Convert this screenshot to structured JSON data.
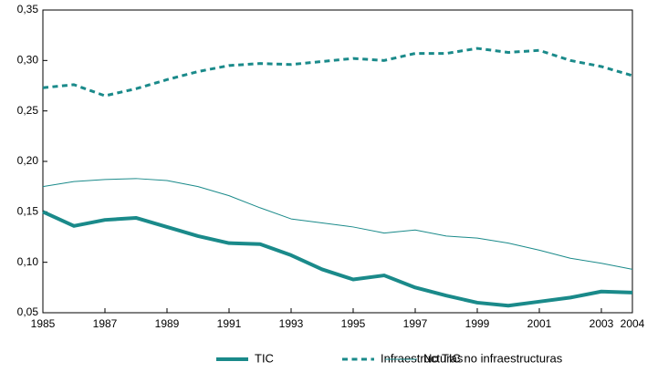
{
  "chart_data": {
    "type": "line",
    "x": [
      1985,
      1986,
      1987,
      1988,
      1989,
      1990,
      1991,
      1992,
      1993,
      1994,
      1995,
      1996,
      1997,
      1998,
      1999,
      2000,
      2001,
      2002,
      2003,
      2004
    ],
    "series": [
      {
        "name": "TIC",
        "color": "#1a8a8a",
        "linewidth": 4,
        "linestyle": "solid",
        "values": [
          0.15,
          0.136,
          0.142,
          0.144,
          0.135,
          0.126,
          0.119,
          0.118,
          0.107,
          0.093,
          0.083,
          0.087,
          0.075,
          0.067,
          0.06,
          0.057,
          0.061,
          0.065,
          0.071,
          0.07
        ]
      },
      {
        "name": "Infraestructuras",
        "color": "#1a8a8a",
        "linewidth": 3,
        "linestyle": "dashed",
        "values": [
          0.273,
          0.276,
          0.265,
          0.272,
          0.281,
          0.289,
          0.295,
          0.297,
          0.296,
          0.299,
          0.302,
          0.3,
          0.307,
          0.307,
          0.312,
          0.308,
          0.31,
          0.3,
          0.294,
          0.285
        ]
      },
      {
        "name": "No TIC no infraestructuras",
        "color": "#1a8a8a",
        "linewidth": 1,
        "linestyle": "solid",
        "values": [
          0.175,
          0.18,
          0.182,
          0.183,
          0.181,
          0.175,
          0.166,
          0.154,
          0.143,
          0.139,
          0.135,
          0.129,
          0.132,
          0.126,
          0.124,
          0.119,
          0.112,
          0.104,
          0.099,
          0.093
        ]
      }
    ],
    "xlim": [
      1985,
      2004
    ],
    "xticks": [
      1985,
      1987,
      1989,
      1991,
      1993,
      1995,
      1997,
      1999,
      2001,
      2003,
      2004
    ],
    "ylim": [
      0.05,
      0.35
    ],
    "yticks": [
      {
        "value": 0.05,
        "label": "0,05"
      },
      {
        "value": 0.1,
        "label": "0,10"
      },
      {
        "value": 0.15,
        "label": "0,15"
      },
      {
        "value": 0.2,
        "label": "0,20"
      },
      {
        "value": 0.25,
        "label": "0,25"
      },
      {
        "value": 0.3,
        "label": "0,30"
      },
      {
        "value": 0.35,
        "label": "0,35"
      }
    ],
    "grid": false,
    "legend": "bottom"
  }
}
